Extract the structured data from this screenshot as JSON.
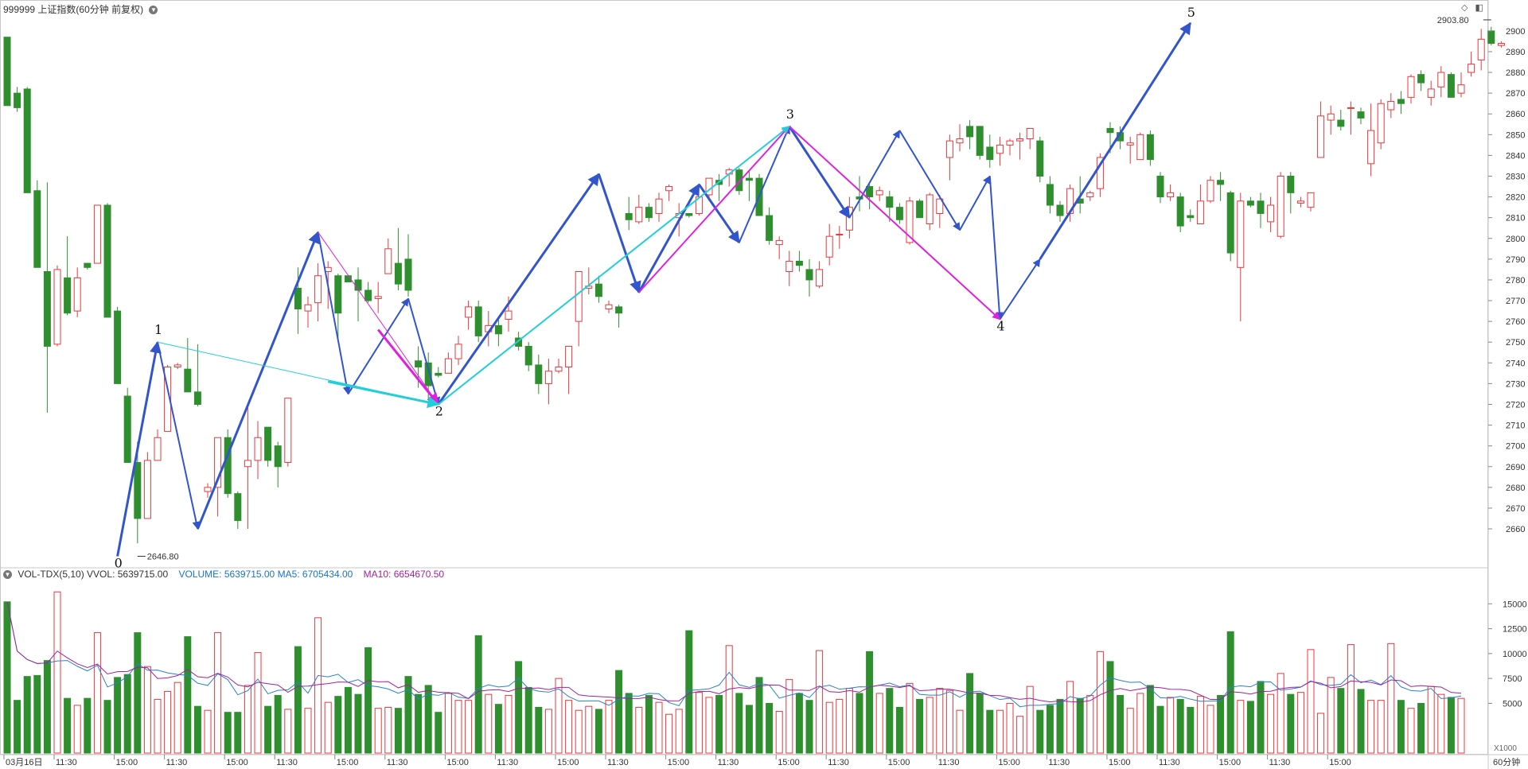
{
  "header": {
    "symbol": "999999",
    "name": "上证指数",
    "period": "(60分钟 前复权)"
  },
  "volume_header": {
    "indicator": "VOL-TDX(5,10)",
    "vvol": "VVOL: 5639715.00",
    "volume": "VOLUME: 5639715.00",
    "ma5": "MA5: 6705434.00",
    "ma10": "MA10: 6654670.50"
  },
  "period_label": "60分钟",
  "volume_unit": "X1000",
  "colors": {
    "up": "#e8383d",
    "down": "#2f8f2f",
    "wave_blue": "#3355cc",
    "wave_magenta": "#e020e0",
    "wave_cyan": "#22cfd8",
    "volume_line": "#2a80d0",
    "ma_line": "#a0229e"
  },
  "chart_data": [
    {
      "type": "candlestick",
      "title": "999999 上证指数(60分钟 前复权)",
      "ylim": [
        2642,
        2908
      ],
      "yticks": [
        2660,
        2670,
        2680,
        2690,
        2700,
        2710,
        2720,
        2730,
        2740,
        2750,
        2760,
        2770,
        2780,
        2790,
        2800,
        2810,
        2820,
        2830,
        2840,
        2850,
        2860,
        2870,
        2880,
        2890,
        2900
      ],
      "x_tick_labels": [
        "03月16日",
        "11:30",
        "15:00",
        "11:30",
        "15:00",
        "11:30",
        "15:00",
        "11:30",
        "15:00",
        "11:30",
        "15:00",
        "11:30",
        "15:00",
        "11:30",
        "15:00",
        "11:30",
        "15:00",
        "11:30",
        "15:00",
        "11:30",
        "15:00",
        "11:30",
        "15:00",
        "11:30",
        "15:00"
      ],
      "annotations": {
        "low": {
          "label": "2646.80",
          "value": 2646.8
        },
        "high": {
          "label": "2903.80",
          "value": 2903.8
        }
      },
      "candles": [
        [
          2897,
          2897,
          2865,
          2864
        ],
        [
          2870,
          2873,
          2861,
          2863
        ],
        [
          2872,
          2873,
          2822,
          2822
        ],
        [
          2823,
          2828,
          2786,
          2786
        ],
        [
          2784,
          2827,
          2716,
          2748
        ],
        [
          2749,
          2787,
          2748,
          2785
        ],
        [
          2781,
          2801,
          2763,
          2764
        ],
        [
          2765,
          2786,
          2762,
          2781
        ],
        [
          2788,
          2788,
          2785,
          2786
        ],
        [
          2788,
          2816,
          2788,
          2816
        ],
        [
          2816,
          2817,
          2762,
          2762
        ],
        [
          2765,
          2767,
          2730,
          2730
        ],
        [
          2724,
          2728,
          2692,
          2692
        ],
        [
          2692,
          2702,
          2653,
          2665
        ],
        [
          2665,
          2697,
          2665,
          2693
        ],
        [
          2693,
          2708,
          2693,
          2704
        ],
        [
          2707,
          2739,
          2707,
          2738
        ],
        [
          2738,
          2740,
          2737,
          2739
        ],
        [
          2737,
          2752,
          2728,
          2726
        ],
        [
          2726,
          2749,
          2719,
          2720
        ],
        [
          2678,
          2682,
          2675,
          2680
        ],
        [
          2680,
          2704,
          2666,
          2704
        ],
        [
          2704,
          2708,
          2675,
          2677
        ],
        [
          2677,
          2678,
          2660,
          2664
        ],
        [
          2690,
          2719,
          2660,
          2693
        ],
        [
          2693,
          2712,
          2684,
          2704
        ],
        [
          2709,
          2709,
          2690,
          2693
        ],
        [
          2700,
          2702,
          2680,
          2690
        ],
        [
          2692,
          2723,
          2690,
          2723
        ],
        [
          2776,
          2786,
          2754,
          2766
        ],
        [
          2765,
          2772,
          2757,
          2768
        ],
        [
          2769,
          2788,
          2760,
          2782
        ],
        [
          2784,
          2789,
          2766,
          2786
        ],
        [
          2782,
          2783,
          2751,
          2764
        ],
        [
          2782,
          2782,
          2780,
          2779
        ],
        [
          2780,
          2786,
          2760,
          2775
        ],
        [
          2775,
          2779,
          2769,
          2770
        ],
        [
          2771,
          2779,
          2764,
          2772
        ],
        [
          2783,
          2800,
          2783,
          2795
        ],
        [
          2788,
          2805,
          2775,
          2778
        ],
        [
          2790,
          2802,
          2772,
          2775
        ],
        [
          2741,
          2748,
          2728,
          2738
        ],
        [
          2740,
          2745,
          2722,
          2729
        ],
        [
          2735,
          2738,
          2733,
          2734
        ],
        [
          2735,
          2745,
          2735,
          2742
        ],
        [
          2742,
          2753,
          2739,
          2749
        ],
        [
          2762,
          2770,
          2756,
          2767
        ],
        [
          2767,
          2770,
          2750,
          2753
        ],
        [
          2755,
          2765,
          2748,
          2758
        ],
        [
          2758,
          2762,
          2748,
          2754
        ],
        [
          2761,
          2772,
          2755,
          2765
        ],
        [
          2752,
          2755,
          2746,
          2748
        ],
        [
          2748,
          2750,
          2736,
          2739
        ],
        [
          2739,
          2744,
          2725,
          2730
        ],
        [
          2730,
          2742,
          2720,
          2736
        ],
        [
          2736,
          2742,
          2735,
          2738
        ],
        [
          2738,
          2746,
          2725,
          2748
        ],
        [
          2760,
          2784,
          2748,
          2784
        ],
        [
          2776,
          2786,
          2773,
          2777
        ],
        [
          2778,
          2782,
          2769,
          2772
        ],
        [
          2766,
          2770,
          2764,
          2768
        ],
        [
          2767,
          2768,
          2757,
          2764
        ],
        [
          2812,
          2820,
          2804,
          2809
        ],
        [
          2808,
          2821,
          2807,
          2815
        ],
        [
          2815,
          2817,
          2808,
          2810
        ],
        [
          2812,
          2822,
          2808,
          2819
        ],
        [
          2823,
          2826,
          2818,
          2825
        ],
        [
          2810,
          2817,
          2801,
          2812
        ],
        [
          2812,
          2812,
          2810,
          2811
        ],
        [
          2812,
          2820,
          2811,
          2820
        ],
        [
          2821,
          2829,
          2818,
          2829
        ],
        [
          2828,
          2831,
          2818,
          2826
        ],
        [
          2831,
          2834,
          2825,
          2833
        ],
        [
          2833,
          2834,
          2821,
          2823
        ],
        [
          2829,
          2833,
          2818,
          2828
        ],
        [
          2829,
          2831,
          2811,
          2811
        ],
        [
          2811,
          2815,
          2797,
          2799
        ],
        [
          2797,
          2801,
          2790,
          2799
        ],
        [
          2784,
          2794,
          2777,
          2789
        ],
        [
          2789,
          2794,
          2784,
          2787
        ],
        [
          2785,
          2790,
          2772,
          2780
        ],
        [
          2777,
          2789,
          2776,
          2785
        ],
        [
          2791,
          2807,
          2787,
          2801
        ],
        [
          2802,
          2806,
          2795,
          2802
        ],
        [
          2804,
          2820,
          2800,
          2815
        ],
        [
          2820,
          2830,
          2813,
          2819
        ],
        [
          2825,
          2826,
          2814,
          2820
        ],
        [
          2821,
          2825,
          2818,
          2823
        ],
        [
          2820,
          2823,
          2808,
          2815
        ],
        [
          2815,
          2817,
          2807,
          2809
        ],
        [
          2798,
          2820,
          2797,
          2818
        ],
        [
          2818,
          2819,
          2810,
          2810
        ],
        [
          2807,
          2822,
          2804,
          2821
        ],
        [
          2812,
          2821,
          2805,
          2819
        ],
        [
          2839,
          2850,
          2828,
          2847
        ],
        [
          2846,
          2855,
          2842,
          2848
        ],
        [
          2854,
          2857,
          2843,
          2849
        ],
        [
          2854,
          2854,
          2838,
          2840
        ],
        [
          2844,
          2850,
          2834,
          2838
        ],
        [
          2841,
          2849,
          2835,
          2845
        ],
        [
          2845,
          2848,
          2840,
          2847
        ],
        [
          2847,
          2851,
          2838,
          2848
        ],
        [
          2848,
          2852,
          2843,
          2853
        ],
        [
          2847,
          2849,
          2827,
          2830
        ],
        [
          2826,
          2830,
          2812,
          2816
        ],
        [
          2816,
          2818,
          2808,
          2811
        ],
        [
          2812,
          2826,
          2808,
          2824
        ],
        [
          2819,
          2830,
          2812,
          2817
        ],
        [
          2820,
          2823,
          2818,
          2822
        ],
        [
          2824,
          2841,
          2820,
          2839
        ],
        [
          2853,
          2856,
          2841,
          2851
        ],
        [
          2851,
          2854,
          2843,
          2847
        ],
        [
          2845,
          2849,
          2836,
          2846
        ],
        [
          2838,
          2851,
          2840,
          2850
        ],
        [
          2850,
          2852,
          2835,
          2838
        ],
        [
          2830,
          2832,
          2817,
          2820
        ],
        [
          2820,
          2826,
          2818,
          2822
        ],
        [
          2820,
          2822,
          2803,
          2806
        ],
        [
          2811,
          2814,
          2808,
          2810
        ],
        [
          2807,
          2826,
          2807,
          2818
        ],
        [
          2818,
          2830,
          2817,
          2828
        ],
        [
          2828,
          2832,
          2818,
          2826
        ],
        [
          2822,
          2823,
          2789,
          2793
        ],
        [
          2786,
          2822,
          2760,
          2818
        ],
        [
          2818,
          2820,
          2815,
          2816
        ],
        [
          2818,
          2822,
          2805,
          2812
        ],
        [
          2808,
          2820,
          2803,
          2816
        ],
        [
          2801,
          2832,
          2800,
          2830
        ],
        [
          2830,
          2832,
          2812,
          2822
        ],
        [
          2817,
          2820,
          2815,
          2818
        ],
        [
          2815,
          2822,
          2813,
          2822
        ],
        [
          2839,
          2866,
          2839,
          2859
        ],
        [
          2857,
          2864,
          2850,
          2860
        ],
        [
          2857,
          2862,
          2852,
          2854
        ],
        [
          2863,
          2866,
          2850,
          2863
        ],
        [
          2861,
          2863,
          2855,
          2858
        ],
        [
          2836,
          2865,
          2830,
          2852
        ],
        [
          2846,
          2867,
          2843,
          2865
        ],
        [
          2862,
          2870,
          2858,
          2866
        ],
        [
          2867,
          2871,
          2860,
          2865
        ],
        [
          2868,
          2879,
          2865,
          2878
        ],
        [
          2879,
          2881,
          2871,
          2875
        ],
        [
          2868,
          2876,
          2864,
          2872
        ],
        [
          2873,
          2883,
          2868,
          2880
        ],
        [
          2879,
          2880,
          2868,
          2868
        ],
        [
          2870,
          2880,
          2868,
          2874
        ],
        [
          2880,
          2890,
          2878,
          2884
        ],
        [
          2886,
          2901,
          2881,
          2896
        ],
        [
          2900,
          2902,
          2893,
          2894
        ],
        [
          2893,
          2895,
          2892,
          2894
        ]
      ],
      "waves": [
        {
          "label": "0",
          "value": 2646.8
        },
        {
          "label": "1",
          "value": 2750
        },
        {
          "label": "2",
          "value": 2720
        },
        {
          "label": "3",
          "value": 2854
        },
        {
          "label": "4",
          "value": 2761
        },
        {
          "label": "5",
          "value": 2903.8
        }
      ]
    },
    {
      "type": "bar",
      "title": "VOL-TDX(5,10)",
      "ylim": [
        0,
        17500
      ],
      "yticks": [
        5000,
        7500,
        10000,
        12500,
        15000
      ],
      "series_names": [
        "VOLUME",
        "MA5",
        "MA10"
      ],
      "unit": "X1000",
      "volumes": [
        15200,
        5300,
        7700,
        7800,
        9300,
        16200,
        5500,
        4800,
        5500,
        12100,
        5300,
        7600,
        7900,
        12100,
        8700,
        5400,
        6200,
        7100,
        11700,
        4700,
        4300,
        12100,
        4100,
        4100,
        6800,
        10100,
        4700,
        5800,
        4400,
        10700,
        4500,
        13600,
        5100,
        5700,
        6600,
        5900,
        10600,
        4500,
        4600,
        4500,
        7700,
        5900,
        6800,
        4100,
        6000,
        5300,
        5300,
        11800,
        5900,
        4900,
        5800,
        9200,
        6600,
        4600,
        4400,
        7500,
        5300,
        4300,
        4700,
        4400,
        5300,
        8300,
        6000,
        4600,
        5800,
        5100,
        3900,
        4400,
        12300,
        6100,
        5600,
        5800,
        10800,
        6000,
        4800,
        7600,
        5000,
        4200,
        7400,
        6000,
        5300,
        10300,
        5100,
        5400,
        6500,
        6000,
        10200,
        6000,
        6500,
        4600,
        7000,
        5400,
        5600,
        6500,
        6300,
        4300,
        8000,
        6000,
        4300,
        4300,
        5000,
        3700,
        6700,
        4300,
        4800,
        5400,
        7200,
        5500,
        5800,
        10200,
        9200,
        5800,
        4500,
        6000,
        6800,
        4700,
        5600,
        5400,
        4600,
        5700,
        4800,
        5800,
        12200,
        5300,
        5200,
        7200,
        5900,
        8000,
        5900,
        6100,
        10400,
        4000,
        7600,
        6500,
        10900,
        6400,
        5300,
        5300,
        11000,
        5300,
        4500,
        5000,
        6700,
        5900,
        5600,
        5500
      ]
    }
  ]
}
